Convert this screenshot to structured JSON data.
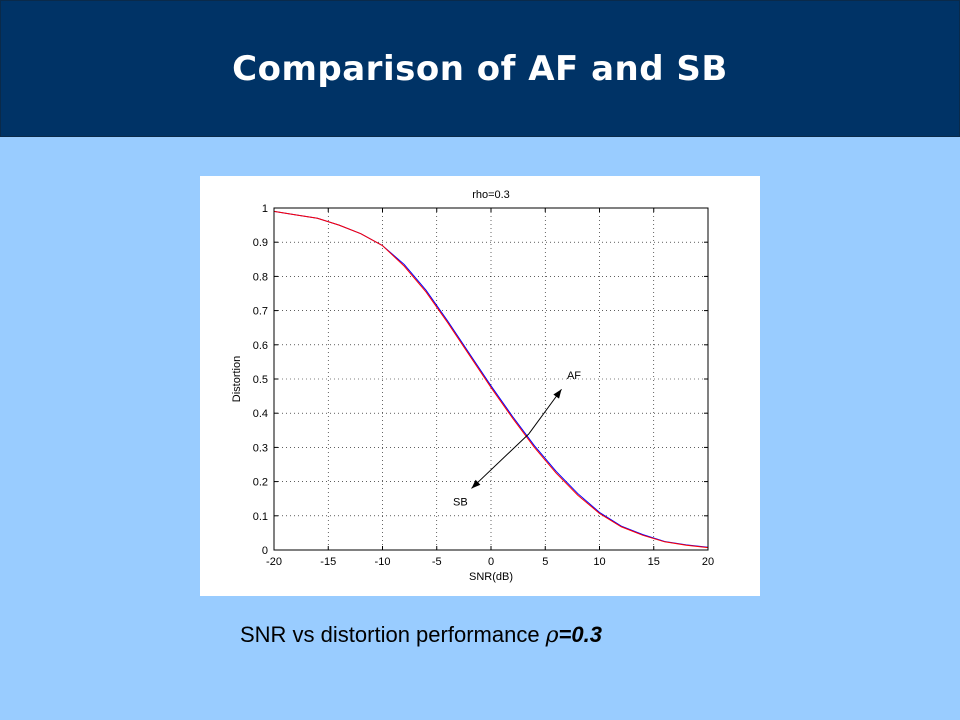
{
  "slide": {
    "title": "Comparison of AF and SB",
    "caption_text": "SNR vs distortion performance",
    "caption_symbol": "ρ",
    "caption_value": "=0.3"
  },
  "colors": {
    "header_bg": "#003366",
    "slide_bg": "#99ccff",
    "af_line": "#0000ff",
    "sb_line": "#ff0000"
  },
  "chart_data": {
    "type": "line",
    "title": "rho=0.3",
    "xlabel": "SNR(dB)",
    "ylabel": "Distortion",
    "xlim": [
      -20,
      20
    ],
    "ylim": [
      0,
      1
    ],
    "xticks": [
      -20,
      -15,
      -10,
      -5,
      0,
      5,
      10,
      15,
      20
    ],
    "yticks": [
      0,
      0.1,
      0.2,
      0.3,
      0.4,
      0.5,
      0.6,
      0.7,
      0.8,
      0.9,
      1
    ],
    "grid": true,
    "x": [
      -20,
      -18,
      -16,
      -14,
      -12,
      -10,
      -8,
      -6,
      -4,
      -2,
      0,
      2,
      4,
      6,
      8,
      10,
      12,
      14,
      16,
      18,
      20
    ],
    "series": [
      {
        "name": "AF",
        "values": [
          0.99,
          0.98,
          0.97,
          0.95,
          0.925,
          0.89,
          0.835,
          0.76,
          0.67,
          0.575,
          0.48,
          0.39,
          0.305,
          0.23,
          0.165,
          0.11,
          0.07,
          0.045,
          0.025,
          0.015,
          0.008
        ]
      },
      {
        "name": "SB",
        "values": [
          0.99,
          0.98,
          0.97,
          0.95,
          0.925,
          0.89,
          0.83,
          0.755,
          0.665,
          0.57,
          0.475,
          0.385,
          0.3,
          0.225,
          0.16,
          0.107,
          0.068,
          0.043,
          0.024,
          0.014,
          0.007
        ]
      }
    ],
    "annotations": [
      {
        "text": "AF",
        "text_at": [
          7,
          0.5
        ],
        "arrow_from": [
          3.5,
          0.34
        ],
        "arrow_to": [
          6.5,
          0.47
        ]
      },
      {
        "text": "SB",
        "text_at": [
          -3.5,
          0.13
        ],
        "arrow_from": [
          3.5,
          0.34
        ],
        "arrow_to": [
          -1.8,
          0.18
        ]
      }
    ]
  }
}
